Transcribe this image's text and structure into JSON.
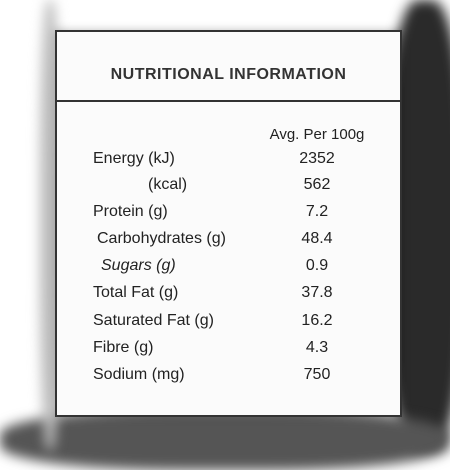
{
  "header": {
    "title": "NUTRITIONAL INFORMATION"
  },
  "table": {
    "column_header": "Avg. Per 100g",
    "rows": [
      [
        "Energy (kJ)",
        2352
      ],
      [
        "(kcal)",
        562
      ],
      [
        "Protein (g)",
        7.2
      ],
      [
        "Carbohydrates (g)",
        48.4
      ],
      [
        "Sugars (g)",
        0.9
      ],
      [
        "Total Fat (g)",
        37.8
      ],
      [
        "Saturated Fat (g)",
        16.2
      ],
      [
        "Fibre (g)",
        4.3
      ],
      [
        "Sodium (mg)",
        750
      ]
    ]
  }
}
